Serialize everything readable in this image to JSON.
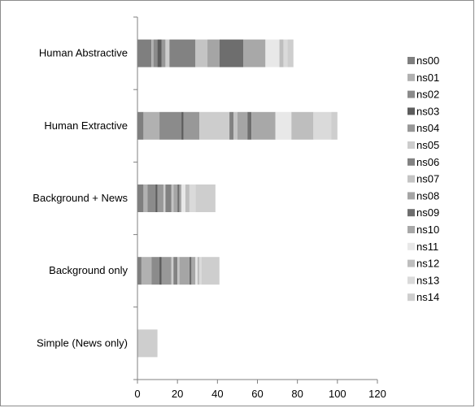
{
  "chart_data": {
    "type": "bar",
    "orientation": "horizontal",
    "stacked": true,
    "title": "",
    "xlabel": "",
    "ylabel": "",
    "categories": [
      "Human Abstractive",
      "Human Extractive",
      "Background + News",
      "Background only",
      "Simple (News only)"
    ],
    "xlim": [
      0,
      120
    ],
    "x_ticks": [
      0,
      20,
      40,
      60,
      80,
      100,
      120
    ],
    "grid": false,
    "legend_position": "right",
    "series": [
      {
        "name": "ns00",
        "color": "#7f7f7f",
        "values": [
          7,
          3,
          3,
          2,
          0
        ]
      },
      {
        "name": "ns01",
        "color": "#b1b1b1",
        "values": [
          1,
          8,
          2,
          5,
          0
        ]
      },
      {
        "name": "ns02",
        "color": "#8b8b8b",
        "values": [
          2,
          11,
          4,
          4,
          0
        ]
      },
      {
        "name": "ns03",
        "color": "#5c5c5c",
        "values": [
          2,
          1,
          1,
          1,
          0
        ]
      },
      {
        "name": "ns04",
        "color": "#989898",
        "values": [
          2,
          8,
          3,
          5,
          0
        ]
      },
      {
        "name": "ns05",
        "color": "#cdcdcd",
        "values": [
          2,
          15,
          1,
          1,
          0
        ]
      },
      {
        "name": "ns06",
        "color": "#828282",
        "values": [
          13,
          2,
          3,
          2,
          0
        ]
      },
      {
        "name": "ns07",
        "color": "#c4c4c4",
        "values": [
          6,
          2,
          1,
          1,
          0
        ]
      },
      {
        "name": "ns08",
        "color": "#a5a5a5",
        "values": [
          6,
          5,
          2,
          5,
          0
        ]
      },
      {
        "name": "ns09",
        "color": "#6e6e6e",
        "values": [
          12,
          2,
          1,
          1,
          0
        ]
      },
      {
        "name": "ns10",
        "color": "#a8a8a8",
        "values": [
          11,
          12,
          1,
          2,
          0
        ]
      },
      {
        "name": "ns11",
        "color": "#e8e8e8",
        "values": [
          7,
          8,
          2,
          1,
          0
        ]
      },
      {
        "name": "ns12",
        "color": "#bebebe",
        "values": [
          2,
          11,
          2,
          1,
          0
        ]
      },
      {
        "name": "ns13",
        "color": "#dadada",
        "values": [
          2,
          9,
          3,
          1,
          0
        ]
      },
      {
        "name": "ns14",
        "color": "#cecece",
        "values": [
          3,
          3,
          10,
          9,
          10
        ]
      }
    ]
  }
}
